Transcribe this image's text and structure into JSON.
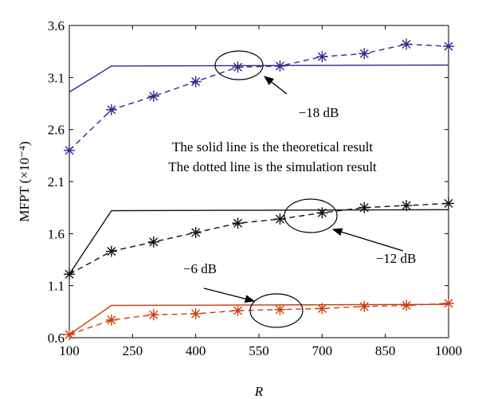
{
  "chart_data": {
    "type": "line",
    "xlabel": "R",
    "ylabel": "MFPT (×10⁻⁴)",
    "xlim": [
      100,
      1000
    ],
    "ylim": [
      0.6,
      3.6
    ],
    "xticks": [
      "100",
      "250",
      "400",
      "550",
      "700",
      "850",
      "1000"
    ],
    "yticks": [
      "0.6",
      "1.1",
      "1.6",
      "2.1",
      "2.6",
      "3.1",
      "3.6"
    ],
    "grid": false,
    "notes": [
      "The solid line is the theoretical result",
      "The dotted line is the simulation result"
    ],
    "groups": [
      {
        "label": "−18 dB",
        "color": "#2e2a8c",
        "theoretical": {
          "x": [
            100,
            200,
            1000
          ],
          "y": [
            2.96,
            3.21,
            3.22
          ]
        },
        "simulation": {
          "x": [
            100,
            200,
            300,
            400,
            500,
            600,
            700,
            800,
            900,
            1000
          ],
          "y": [
            2.4,
            2.79,
            2.92,
            3.06,
            3.2,
            3.21,
            3.3,
            3.33,
            3.42,
            3.4
          ]
        }
      },
      {
        "label": "−12 dB",
        "color": "#111111",
        "theoretical": {
          "x": [
            100,
            200,
            1000
          ],
          "y": [
            1.21,
            1.82,
            1.83
          ]
        },
        "simulation": {
          "x": [
            100,
            200,
            300,
            400,
            500,
            600,
            700,
            800,
            900,
            1000
          ],
          "y": [
            1.21,
            1.43,
            1.52,
            1.61,
            1.7,
            1.74,
            1.8,
            1.85,
            1.87,
            1.89
          ]
        }
      },
      {
        "label": "−6 dB",
        "color": "#cc3d0f",
        "theoretical": {
          "x": [
            100,
            200,
            1000
          ],
          "y": [
            0.63,
            0.91,
            0.92
          ]
        },
        "simulation": {
          "x": [
            100,
            200,
            300,
            400,
            500,
            600,
            700,
            800,
            900,
            1000
          ],
          "y": [
            0.63,
            0.77,
            0.82,
            0.83,
            0.86,
            0.87,
            0.88,
            0.9,
            0.91,
            0.93
          ]
        }
      }
    ]
  }
}
